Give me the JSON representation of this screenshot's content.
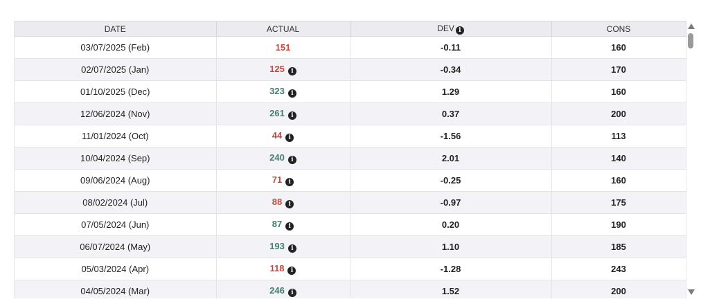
{
  "colors": {
    "positive": "#3f7f6d",
    "negative": "#c8483d",
    "header_bg": "#ececf0",
    "alt_row_bg": "#f3f3f7"
  },
  "table": {
    "columns": [
      "DATE",
      "ACTUAL",
      "DEV",
      "CONS"
    ],
    "dev_header_icon": "info-icon",
    "rows": [
      {
        "date": "03/07/2025 (Feb)",
        "actual": "151",
        "sentiment": "negative",
        "has_info": false,
        "dev": "-0.11",
        "cons": "160"
      },
      {
        "date": "02/07/2025 (Jan)",
        "actual": "125",
        "sentiment": "negative",
        "has_info": true,
        "dev": "-0.34",
        "cons": "170"
      },
      {
        "date": "01/10/2025 (Dec)",
        "actual": "323",
        "sentiment": "positive",
        "has_info": true,
        "dev": "1.29",
        "cons": "160"
      },
      {
        "date": "12/06/2024 (Nov)",
        "actual": "261",
        "sentiment": "positive",
        "has_info": true,
        "dev": "0.37",
        "cons": "200"
      },
      {
        "date": "11/01/2024 (Oct)",
        "actual": "44",
        "sentiment": "negative",
        "has_info": true,
        "dev": "-1.56",
        "cons": "113"
      },
      {
        "date": "10/04/2024 (Sep)",
        "actual": "240",
        "sentiment": "positive",
        "has_info": true,
        "dev": "2.01",
        "cons": "140"
      },
      {
        "date": "09/06/2024 (Aug)",
        "actual": "71",
        "sentiment": "negative",
        "has_info": true,
        "dev": "-0.25",
        "cons": "160"
      },
      {
        "date": "08/02/2024 (Jul)",
        "actual": "88",
        "sentiment": "negative",
        "has_info": true,
        "dev": "-0.97",
        "cons": "175"
      },
      {
        "date": "07/05/2024 (Jun)",
        "actual": "87",
        "sentiment": "positive",
        "has_info": true,
        "dev": "0.20",
        "cons": "190"
      },
      {
        "date": "06/07/2024 (May)",
        "actual": "193",
        "sentiment": "positive",
        "has_info": true,
        "dev": "1.10",
        "cons": "185"
      },
      {
        "date": "05/03/2024 (Apr)",
        "actual": "118",
        "sentiment": "negative",
        "has_info": true,
        "dev": "-1.28",
        "cons": "243"
      },
      {
        "date": "04/05/2024 (Mar)",
        "actual": "246",
        "sentiment": "positive",
        "has_info": true,
        "dev": "1.52",
        "cons": "200"
      }
    ]
  }
}
